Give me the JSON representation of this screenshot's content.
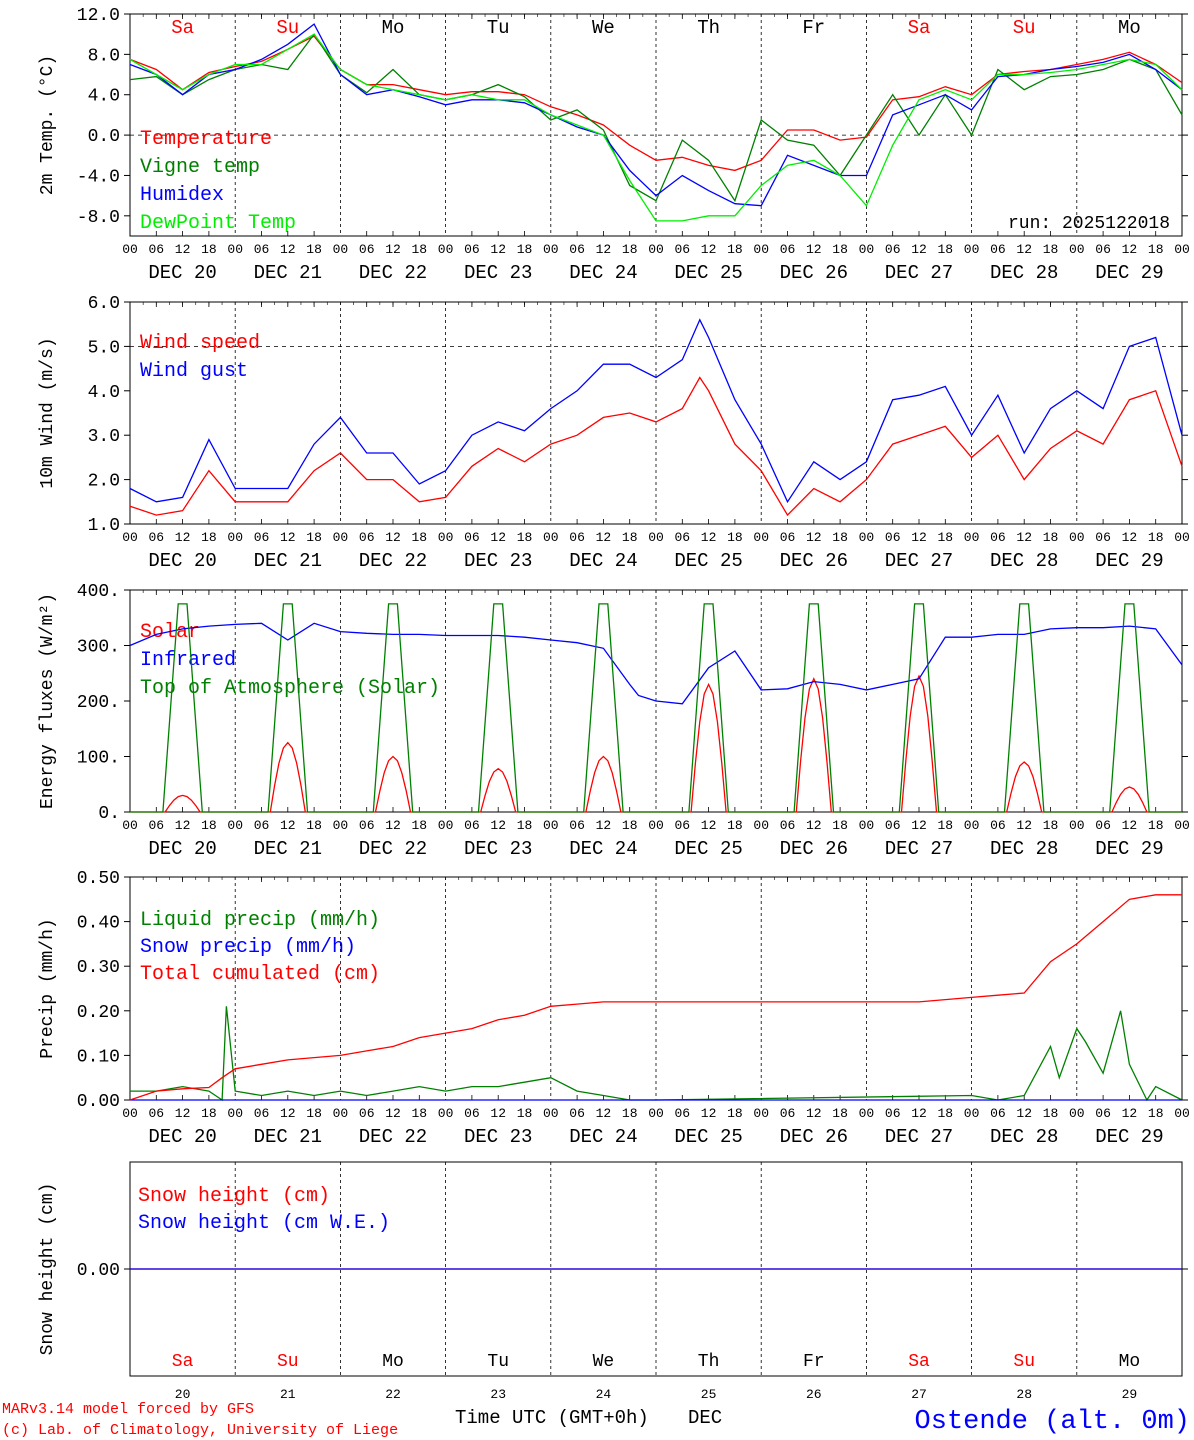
{
  "colors": {
    "red": "#ff0000",
    "green": "#008000",
    "blue": "#0000ff",
    "lightgreen": "#00ee00",
    "black": "#000000"
  },
  "days": {
    "names": [
      "Sa",
      "Su",
      "Mo",
      "Tu",
      "We",
      "Th",
      "Fr",
      "Sa",
      "Su",
      "Mo"
    ],
    "weekend": [
      true,
      true,
      false,
      false,
      false,
      false,
      false,
      true,
      true,
      false
    ],
    "date_labels": [
      "DEC 20",
      "DEC 21",
      "DEC 22",
      "DEC 23",
      "DEC 24",
      "DEC 25",
      "DEC 26",
      "DEC 27",
      "DEC 28",
      "DEC 29"
    ],
    "numbers": [
      "20",
      "21",
      "22",
      "23",
      "24",
      "25",
      "26",
      "27",
      "28",
      "29"
    ],
    "hour_labels": [
      "00",
      "06",
      "12",
      "18"
    ],
    "final_hour_label": "00"
  },
  "chart_data": [
    {
      "type": "line",
      "id": "temp",
      "ylabel": "2m Temp. (°C)",
      "ylim": [
        -10,
        12
      ],
      "yticks": [
        "12.0",
        "8.0",
        "4.0",
        "0.0",
        "-4.0",
        "-8.0"
      ],
      "ytick_values": [
        12,
        8,
        4,
        0,
        -4,
        -8
      ],
      "dashed_at": 0,
      "x_unit": "hours since DEC 20 00 UTC",
      "run_label": "run: 2025122018",
      "series": [
        {
          "name": "Temperature",
          "color": "red",
          "x": [
            0,
            6,
            12,
            18,
            24,
            30,
            36,
            42,
            48,
            54,
            60,
            66,
            72,
            78,
            84,
            90,
            96,
            102,
            108,
            114,
            120,
            126,
            132,
            138,
            144,
            150,
            156,
            162,
            168,
            174,
            180,
            186,
            192,
            198,
            204,
            210,
            216,
            222,
            228,
            234,
            240
          ],
          "y": [
            7.5,
            6.5,
            4.5,
            6.2,
            6.8,
            7.3,
            8.5,
            9.8,
            6.5,
            5.0,
            5.0,
            4.5,
            4.0,
            4.3,
            4.3,
            4.0,
            2.8,
            2.0,
            1.0,
            -1.0,
            -2.5,
            -2.2,
            -3.0,
            -3.5,
            -2.5,
            0.5,
            0.5,
            -0.5,
            -0.2,
            3.5,
            3.8,
            4.8,
            4.0,
            6.0,
            6.3,
            6.5,
            7.0,
            7.5,
            8.2,
            7.0,
            5.2
          ]
        },
        {
          "name": "Vigne temp",
          "color": "green",
          "x": [
            0,
            6,
            12,
            18,
            24,
            30,
            36,
            42,
            48,
            54,
            60,
            66,
            72,
            78,
            84,
            90,
            96,
            102,
            108,
            114,
            120,
            126,
            132,
            138,
            144,
            150,
            156,
            162,
            168,
            174,
            180,
            186,
            192,
            198,
            204,
            210,
            216,
            222,
            228,
            234,
            240
          ],
          "y": [
            5.5,
            5.8,
            4.0,
            5.5,
            6.5,
            7.0,
            6.5,
            10.0,
            6.0,
            4.2,
            6.5,
            4.0,
            3.5,
            4.0,
            5.0,
            3.8,
            1.5,
            2.5,
            0.5,
            -5.0,
            -6.5,
            -0.5,
            -2.5,
            -6.5,
            1.5,
            -0.5,
            -1.0,
            -4.0,
            0.0,
            4.0,
            0.0,
            4.0,
            0.0,
            6.5,
            4.5,
            5.8,
            6.0,
            6.5,
            7.5,
            6.5,
            2.0
          ]
        },
        {
          "name": "Humidex",
          "color": "blue",
          "x": [
            0,
            6,
            12,
            18,
            24,
            30,
            36,
            42,
            48,
            54,
            60,
            66,
            72,
            78,
            84,
            90,
            96,
            102,
            108,
            114,
            120,
            126,
            132,
            138,
            144,
            150,
            156,
            162,
            168,
            174,
            180,
            186,
            192,
            198,
            204,
            210,
            216,
            222,
            228,
            234,
            240
          ],
          "y": [
            7.0,
            6.0,
            4.0,
            6.0,
            6.5,
            7.5,
            9.0,
            11.0,
            6.0,
            4.0,
            4.5,
            3.8,
            3.0,
            3.5,
            3.5,
            3.2,
            2.0,
            0.8,
            0.0,
            -3.5,
            -6.0,
            -4.0,
            -5.5,
            -6.8,
            -7.0,
            -2.0,
            -3.0,
            -4.0,
            -4.0,
            2.0,
            3.0,
            4.0,
            2.5,
            5.8,
            6.0,
            6.5,
            6.8,
            7.2,
            8.0,
            6.5,
            4.5
          ]
        },
        {
          "name": "DewPoint Temp",
          "color": "lightgreen",
          "x": [
            0,
            6,
            12,
            18,
            24,
            30,
            36,
            42,
            48,
            54,
            60,
            66,
            72,
            78,
            84,
            90,
            96,
            102,
            108,
            114,
            120,
            126,
            132,
            138,
            144,
            150,
            156,
            162,
            168,
            174,
            180,
            186,
            192,
            198,
            204,
            210,
            216,
            222,
            228,
            234,
            240
          ],
          "y": [
            7.5,
            6.0,
            4.5,
            6.0,
            7.0,
            7.0,
            8.5,
            10.0,
            6.5,
            5.0,
            4.5,
            4.0,
            3.5,
            4.0,
            3.5,
            3.5,
            2.0,
            1.0,
            0.0,
            -4.5,
            -8.5,
            -8.5,
            -8.0,
            -8.0,
            -5.0,
            -3.0,
            -2.5,
            -4.0,
            -7.0,
            -1.0,
            3.5,
            4.5,
            3.5,
            6.0,
            6.0,
            6.2,
            6.5,
            7.0,
            7.5,
            7.0,
            4.5
          ]
        }
      ]
    },
    {
      "type": "line",
      "id": "wind",
      "ylabel": "10m Wind (m/s)",
      "ylim": [
        1,
        6
      ],
      "yticks": [
        "6.0",
        "5.0",
        "4.0",
        "3.0",
        "2.0",
        "1.0"
      ],
      "ytick_values": [
        6,
        5,
        4,
        3,
        2,
        1
      ],
      "dashed_at": 5,
      "series": [
        {
          "name": "Wind speed",
          "color": "red",
          "x": [
            0,
            6,
            12,
            18,
            24,
            30,
            36,
            42,
            48,
            54,
            60,
            66,
            72,
            78,
            84,
            90,
            96,
            102,
            108,
            114,
            120,
            126,
            130,
            132,
            138,
            144,
            150,
            156,
            162,
            168,
            174,
            180,
            186,
            192,
            198,
            204,
            210,
            216,
            222,
            228,
            234,
            240
          ],
          "y": [
            1.4,
            1.2,
            1.3,
            2.2,
            1.5,
            1.5,
            1.5,
            2.2,
            2.6,
            2.0,
            2.0,
            1.5,
            1.6,
            2.3,
            2.7,
            2.4,
            2.8,
            3.0,
            3.4,
            3.5,
            3.3,
            3.6,
            4.3,
            4.0,
            2.8,
            2.2,
            1.2,
            1.8,
            1.5,
            2.0,
            2.8,
            3.0,
            3.2,
            2.5,
            3.0,
            2.0,
            2.7,
            3.1,
            2.8,
            3.8,
            4.0,
            2.3
          ]
        },
        {
          "name": "Wind gust",
          "color": "blue",
          "x": [
            0,
            6,
            12,
            18,
            24,
            30,
            36,
            42,
            48,
            54,
            60,
            66,
            72,
            78,
            84,
            90,
            96,
            102,
            108,
            114,
            120,
            126,
            130,
            132,
            138,
            144,
            150,
            156,
            162,
            168,
            174,
            180,
            186,
            192,
            198,
            204,
            210,
            216,
            222,
            228,
            234,
            240
          ],
          "y": [
            1.8,
            1.5,
            1.6,
            2.9,
            1.8,
            1.8,
            1.8,
            2.8,
            3.4,
            2.6,
            2.6,
            1.9,
            2.2,
            3.0,
            3.3,
            3.1,
            3.6,
            4.0,
            4.6,
            4.6,
            4.3,
            4.7,
            5.6,
            5.2,
            3.8,
            2.8,
            1.5,
            2.4,
            2.0,
            2.4,
            3.8,
            3.9,
            4.1,
            3.0,
            3.9,
            2.6,
            3.6,
            4.0,
            3.6,
            5.0,
            5.2,
            3.0
          ]
        }
      ]
    },
    {
      "type": "line",
      "id": "flux",
      "ylabel": "Energy fluxes (W/m²)",
      "ylim": [
        0,
        400
      ],
      "yticks": [
        "400.",
        "300.",
        "200.",
        "100.",
        "0."
      ],
      "ytick_values": [
        400,
        300,
        200,
        100,
        0
      ],
      "series": [
        {
          "name": "Solar",
          "color": "red",
          "peaks": [
            30,
            125,
            100,
            78,
            100,
            230,
            240,
            245,
            90,
            45
          ]
        },
        {
          "name": "Infrared",
          "color": "blue",
          "x": [
            0,
            6,
            12,
            18,
            24,
            30,
            36,
            42,
            48,
            54,
            60,
            66,
            72,
            78,
            84,
            90,
            96,
            102,
            108,
            114,
            116,
            120,
            126,
            132,
            138,
            144,
            150,
            156,
            162,
            168,
            174,
            180,
            186,
            192,
            198,
            204,
            210,
            216,
            222,
            228,
            234,
            240
          ],
          "y": [
            300,
            320,
            330,
            335,
            338,
            340,
            310,
            340,
            325,
            322,
            320,
            320,
            318,
            318,
            318,
            315,
            310,
            305,
            295,
            230,
            210,
            200,
            195,
            260,
            290,
            220,
            222,
            235,
            230,
            220,
            230,
            240,
            315,
            315,
            320,
            320,
            330,
            332,
            332,
            335,
            330,
            265
          ]
        },
        {
          "name": "Top of Atmosphere (Solar)",
          "color": "green",
          "peak": 375
        }
      ]
    },
    {
      "type": "line",
      "id": "precip",
      "ylabel": "Precip (mm/h)",
      "ylim": [
        0,
        0.5
      ],
      "yticks": [
        "0.50",
        "0.40",
        "0.30",
        "0.20",
        "0.10",
        "0.00"
      ],
      "ytick_values": [
        0.5,
        0.4,
        0.3,
        0.2,
        0.1,
        0
      ],
      "series": [
        {
          "name": "Liquid precip (mm/h)",
          "color": "green",
          "x": [
            0,
            6,
            12,
            18,
            21,
            22,
            24,
            30,
            36,
            42,
            48,
            54,
            60,
            66,
            72,
            78,
            84,
            90,
            96,
            102,
            108,
            114,
            120,
            192,
            198,
            204,
            210,
            212,
            216,
            218,
            222,
            226,
            228,
            232,
            234,
            240
          ],
          "y": [
            0.02,
            0.02,
            0.03,
            0.02,
            0.0,
            0.21,
            0.02,
            0.01,
            0.02,
            0.01,
            0.02,
            0.01,
            0.02,
            0.03,
            0.02,
            0.03,
            0.03,
            0.04,
            0.05,
            0.02,
            0.01,
            0.0,
            0.0,
            0.01,
            0.0,
            0.01,
            0.12,
            0.05,
            0.16,
            0.13,
            0.06,
            0.2,
            0.08,
            0.0,
            0.03,
            0.0
          ]
        },
        {
          "name": "Snow precip (mm/h)",
          "color": "blue",
          "x": [
            0,
            240
          ],
          "y": [
            0,
            0
          ]
        },
        {
          "name": "Total cumulated (cm)",
          "color": "red",
          "x": [
            0,
            6,
            12,
            18,
            21,
            24,
            30,
            36,
            42,
            48,
            54,
            60,
            66,
            72,
            78,
            84,
            90,
            96,
            102,
            108,
            114,
            120,
            132,
            144,
            156,
            168,
            180,
            192,
            198,
            204,
            210,
            216,
            222,
            228,
            234,
            240
          ],
          "y": [
            0.0,
            0.02,
            0.025,
            0.028,
            0.05,
            0.07,
            0.08,
            0.09,
            0.095,
            0.1,
            0.11,
            0.12,
            0.14,
            0.15,
            0.16,
            0.18,
            0.19,
            0.21,
            0.215,
            0.22,
            0.22,
            0.22,
            0.22,
            0.22,
            0.22,
            0.22,
            0.22,
            0.23,
            0.235,
            0.24,
            0.31,
            0.35,
            0.4,
            0.45,
            0.46,
            0.46
          ]
        }
      ]
    },
    {
      "type": "line",
      "id": "snow",
      "ylabel": "Snow height (cm)",
      "ylim": [
        -1,
        1
      ],
      "yticks": [
        "0.00"
      ],
      "ytick_values": [
        0
      ],
      "series": [
        {
          "name": "Snow height (cm)",
          "color": "red",
          "x": [
            0,
            240
          ],
          "y": [
            0,
            0
          ]
        },
        {
          "name": "Snow height (cm W.E.)",
          "color": "blue",
          "x": [
            0,
            240
          ],
          "y": [
            0,
            0
          ]
        }
      ]
    }
  ],
  "footer": {
    "model": "MARv3.14 model forced by GFS",
    "credit": "(c) Lab. of Climatology, University of Liege",
    "xlabel": "Time UTC (GMT+0h)",
    "month": "DEC",
    "station": "Ostende (alt. 0m)"
  }
}
